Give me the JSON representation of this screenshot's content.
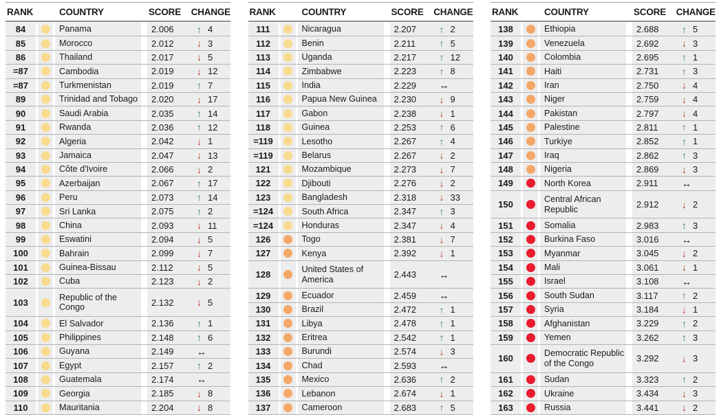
{
  "header": {
    "rank": "RANK",
    "country": "COUNTRY",
    "score": "SCORE",
    "change": "CHANGE"
  },
  "colors": {
    "band": {
      "yellow": "#f8db8d",
      "orange": "#f4a767",
      "red": "#ea1c2d"
    },
    "change": {
      "up": "#37796a",
      "down": "#b23a25",
      "same": "#111111"
    },
    "row_bg": "#ededed",
    "divider": "#b3b3b3",
    "header_line": "#8e8e8e",
    "text": "#1a1a1a"
  },
  "icons": {
    "up": "↑",
    "down": "↓",
    "same": "↔"
  },
  "chart_data": {
    "type": "table",
    "columns": [
      "RANK",
      "COUNTRY",
      "SCORE",
      "CHANGE"
    ],
    "tables": [
      {
        "rows": [
          {
            "rank": "84",
            "band": "yellow",
            "country": "Panama",
            "score": "2.006",
            "dir": "up",
            "delta": "4"
          },
          {
            "rank": "85",
            "band": "yellow",
            "country": "Morocco",
            "score": "2.012",
            "dir": "down",
            "delta": "3"
          },
          {
            "rank": "86",
            "band": "yellow",
            "country": "Thailand",
            "score": "2.017",
            "dir": "down",
            "delta": "5"
          },
          {
            "rank": "=87",
            "band": "yellow",
            "country": "Cambodia",
            "score": "2.019",
            "dir": "down",
            "delta": "12"
          },
          {
            "rank": "=87",
            "band": "yellow",
            "country": "Turkmenistan",
            "score": "2.019",
            "dir": "up",
            "delta": "7"
          },
          {
            "rank": "89",
            "band": "yellow",
            "country": "Trinidad and Tobago",
            "score": "2.020",
            "dir": "down",
            "delta": "17"
          },
          {
            "rank": "90",
            "band": "yellow",
            "country": "Saudi Arabia",
            "score": "2.035",
            "dir": "up",
            "delta": "14"
          },
          {
            "rank": "91",
            "band": "yellow",
            "country": "Rwanda",
            "score": "2.036",
            "dir": "up",
            "delta": "12"
          },
          {
            "rank": "92",
            "band": "yellow",
            "country": "Algeria",
            "score": "2.042",
            "dir": "down",
            "delta": "1"
          },
          {
            "rank": "93",
            "band": "yellow",
            "country": "Jamaica",
            "score": "2.047",
            "dir": "down",
            "delta": "13"
          },
          {
            "rank": "94",
            "band": "yellow",
            "country": "Côte d'Ivoire",
            "score": "2.066",
            "dir": "down",
            "delta": "2"
          },
          {
            "rank": "95",
            "band": "yellow",
            "country": "Azerbaijan",
            "score": "2.067",
            "dir": "up",
            "delta": "17"
          },
          {
            "rank": "96",
            "band": "yellow",
            "country": "Peru",
            "score": "2.073",
            "dir": "up",
            "delta": "14"
          },
          {
            "rank": "97",
            "band": "yellow",
            "country": "Sri Lanka",
            "score": "2.075",
            "dir": "up",
            "delta": "2"
          },
          {
            "rank": "98",
            "band": "yellow",
            "country": "China",
            "score": "2.093",
            "dir": "down",
            "delta": "11"
          },
          {
            "rank": "99",
            "band": "yellow",
            "country": "Eswatini",
            "score": "2.094",
            "dir": "down",
            "delta": "5"
          },
          {
            "rank": "100",
            "band": "yellow",
            "country": "Bahrain",
            "score": "2.099",
            "dir": "down",
            "delta": "7"
          },
          {
            "rank": "101",
            "band": "yellow",
            "country": "Guinea-Bissau",
            "score": "2.112",
            "dir": "down",
            "delta": "5"
          },
          {
            "rank": "102",
            "band": "yellow",
            "country": "Cuba",
            "score": "2.123",
            "dir": "down",
            "delta": "2"
          },
          {
            "rank": "103",
            "band": "yellow",
            "country": "Republic of the Congo",
            "score": "2.132",
            "dir": "down",
            "delta": "5",
            "tall": true
          },
          {
            "rank": "104",
            "band": "yellow",
            "country": "El Salvador",
            "score": "2.136",
            "dir": "up",
            "delta": "1"
          },
          {
            "rank": "105",
            "band": "yellow",
            "country": "Philippines",
            "score": "2.148",
            "dir": "up",
            "delta": "6"
          },
          {
            "rank": "106",
            "band": "yellow",
            "country": "Guyana",
            "score": "2.149",
            "dir": "same",
            "delta": ""
          },
          {
            "rank": "107",
            "band": "yellow",
            "country": "Egypt",
            "score": "2.157",
            "dir": "up",
            "delta": "2"
          },
          {
            "rank": "108",
            "band": "yellow",
            "country": "Guatemala",
            "score": "2.174",
            "dir": "same",
            "delta": ""
          },
          {
            "rank": "109",
            "band": "yellow",
            "country": "Georgia",
            "score": "2.185",
            "dir": "down",
            "delta": "8"
          },
          {
            "rank": "110",
            "band": "yellow",
            "country": "Mauritania",
            "score": "2.204",
            "dir": "down",
            "delta": "8"
          }
        ]
      },
      {
        "rows": [
          {
            "rank": "111",
            "band": "yellow",
            "country": "Nicaragua",
            "score": "2.207",
            "dir": "up",
            "delta": "2"
          },
          {
            "rank": "112",
            "band": "yellow",
            "country": "Benin",
            "score": "2.211",
            "dir": "up",
            "delta": "5"
          },
          {
            "rank": "113",
            "band": "yellow",
            "country": "Uganda",
            "score": "2.217",
            "dir": "up",
            "delta": "12"
          },
          {
            "rank": "114",
            "band": "yellow",
            "country": "Zimbabwe",
            "score": "2.223",
            "dir": "up",
            "delta": "8"
          },
          {
            "rank": "115",
            "band": "yellow",
            "country": "India",
            "score": "2.229",
            "dir": "same",
            "delta": ""
          },
          {
            "rank": "116",
            "band": "yellow",
            "country": "Papua New Guinea",
            "score": "2.230",
            "dir": "down",
            "delta": "9"
          },
          {
            "rank": "117",
            "band": "yellow",
            "country": "Gabon",
            "score": "2.238",
            "dir": "down",
            "delta": "1"
          },
          {
            "rank": "118",
            "band": "yellow",
            "country": "Guinea",
            "score": "2.253",
            "dir": "up",
            "delta": "6"
          },
          {
            "rank": "=119",
            "band": "yellow",
            "country": "Lesotho",
            "score": "2.267",
            "dir": "up",
            "delta": "4"
          },
          {
            "rank": "=119",
            "band": "yellow",
            "country": "Belarus",
            "score": "2.267",
            "dir": "down",
            "delta": "2"
          },
          {
            "rank": "121",
            "band": "yellow",
            "country": "Mozambique",
            "score": "2.273",
            "dir": "down",
            "delta": "7"
          },
          {
            "rank": "122",
            "band": "yellow",
            "country": "Djibouti",
            "score": "2.276",
            "dir": "down",
            "delta": "2"
          },
          {
            "rank": "123",
            "band": "yellow",
            "country": "Bangladesh",
            "score": "2.318",
            "dir": "down",
            "delta": "33"
          },
          {
            "rank": "=124",
            "band": "yellow",
            "country": "South Africa",
            "score": "2.347",
            "dir": "up",
            "delta": "3"
          },
          {
            "rank": "=124",
            "band": "yellow",
            "country": "Honduras",
            "score": "2.347",
            "dir": "down",
            "delta": "4"
          },
          {
            "rank": "126",
            "band": "orange",
            "country": "Togo",
            "score": "2.381",
            "dir": "down",
            "delta": "7"
          },
          {
            "rank": "127",
            "band": "orange",
            "country": "Kenya",
            "score": "2.392",
            "dir": "down",
            "delta": "1"
          },
          {
            "rank": "128",
            "band": "orange",
            "country": "United States of America",
            "score": "2.443",
            "dir": "same",
            "delta": "",
            "tall": true
          },
          {
            "rank": "129",
            "band": "orange",
            "country": "Ecuador",
            "score": "2.459",
            "dir": "same",
            "delta": ""
          },
          {
            "rank": "130",
            "band": "orange",
            "country": "Brazil",
            "score": "2.472",
            "dir": "up",
            "delta": "1"
          },
          {
            "rank": "131",
            "band": "orange",
            "country": "Libya",
            "score": "2.478",
            "dir": "up",
            "delta": "1"
          },
          {
            "rank": "132",
            "band": "orange",
            "country": "Eritrea",
            "score": "2.542",
            "dir": "up",
            "delta": "1"
          },
          {
            "rank": "133",
            "band": "orange",
            "country": "Burundi",
            "score": "2.574",
            "dir": "down",
            "delta": "3"
          },
          {
            "rank": "134",
            "band": "orange",
            "country": "Chad",
            "score": "2.593",
            "dir": "same",
            "delta": ""
          },
          {
            "rank": "135",
            "band": "orange",
            "country": "Mexico",
            "score": "2.636",
            "dir": "up",
            "delta": "2"
          },
          {
            "rank": "136",
            "band": "orange",
            "country": "Lebanon",
            "score": "2.674",
            "dir": "down",
            "delta": "1"
          },
          {
            "rank": "137",
            "band": "orange",
            "country": "Cameroon",
            "score": "2.683",
            "dir": "up",
            "delta": "5"
          }
        ]
      },
      {
        "rows": [
          {
            "rank": "138",
            "band": "orange",
            "country": "Ethiopia",
            "score": "2.688",
            "dir": "up",
            "delta": "5"
          },
          {
            "rank": "139",
            "band": "orange",
            "country": "Venezuela",
            "score": "2.692",
            "dir": "down",
            "delta": "3"
          },
          {
            "rank": "140",
            "band": "orange",
            "country": "Colombia",
            "score": "2.695",
            "dir": "up",
            "delta": "1"
          },
          {
            "rank": "141",
            "band": "orange",
            "country": "Haiti",
            "score": "2.731",
            "dir": "up",
            "delta": "3"
          },
          {
            "rank": "142",
            "band": "orange",
            "country": "Iran",
            "score": "2.750",
            "dir": "down",
            "delta": "4"
          },
          {
            "rank": "143",
            "band": "orange",
            "country": "Niger",
            "score": "2.759",
            "dir": "down",
            "delta": "4"
          },
          {
            "rank": "144",
            "band": "orange",
            "country": "Pakistan",
            "score": "2.797",
            "dir": "down",
            "delta": "4"
          },
          {
            "rank": "145",
            "band": "orange",
            "country": "Palestine",
            "score": "2.811",
            "dir": "up",
            "delta": "1"
          },
          {
            "rank": "146",
            "band": "orange",
            "country": "Turkiye",
            "score": "2.852",
            "dir": "up",
            "delta": "1"
          },
          {
            "rank": "147",
            "band": "orange",
            "country": "Iraq",
            "score": "2.862",
            "dir": "up",
            "delta": "3"
          },
          {
            "rank": "148",
            "band": "orange",
            "country": "Nigeria",
            "score": "2.869",
            "dir": "down",
            "delta": "3"
          },
          {
            "rank": "149",
            "band": "red",
            "country": "North Korea",
            "score": "2.911",
            "dir": "same",
            "delta": ""
          },
          {
            "rank": "150",
            "band": "red",
            "country": "Central African Republic",
            "score": "2.912",
            "dir": "down",
            "delta": "2",
            "tall": true
          },
          {
            "rank": "151",
            "band": "red",
            "country": "Somalia",
            "score": "2.983",
            "dir": "up",
            "delta": "3"
          },
          {
            "rank": "152",
            "band": "red",
            "country": "Burkina Faso",
            "score": "3.016",
            "dir": "same",
            "delta": ""
          },
          {
            "rank": "153",
            "band": "red",
            "country": "Myanmar",
            "score": "3.045",
            "dir": "down",
            "delta": "2"
          },
          {
            "rank": "154",
            "band": "red",
            "country": "Mali",
            "score": "3.061",
            "dir": "down",
            "delta": "1"
          },
          {
            "rank": "155",
            "band": "red",
            "country": "Israel",
            "score": "3.108",
            "dir": "same",
            "delta": ""
          },
          {
            "rank": "156",
            "band": "red",
            "country": "South Sudan",
            "score": "3.117",
            "dir": "up",
            "delta": "2"
          },
          {
            "rank": "157",
            "band": "red",
            "country": "Syria",
            "score": "3.184",
            "dir": "down",
            "delta": "1"
          },
          {
            "rank": "158",
            "band": "red",
            "country": "Afghanistan",
            "score": "3.229",
            "dir": "up",
            "delta": "2"
          },
          {
            "rank": "159",
            "band": "red",
            "country": "Yemen",
            "score": "3.262",
            "dir": "up",
            "delta": "3"
          },
          {
            "rank": "160",
            "band": "red",
            "country": "Democratic Republic of the Congo",
            "score": "3.292",
            "dir": "down",
            "delta": "3",
            "tall": true
          },
          {
            "rank": "161",
            "band": "red",
            "country": "Sudan",
            "score": "3.323",
            "dir": "up",
            "delta": "2"
          },
          {
            "rank": "162",
            "band": "red",
            "country": "Ukraine",
            "score": "3.434",
            "dir": "down",
            "delta": "3"
          },
          {
            "rank": "163",
            "band": "red",
            "country": "Russia",
            "score": "3.441",
            "dir": "down",
            "delta": "2"
          }
        ]
      }
    ]
  }
}
